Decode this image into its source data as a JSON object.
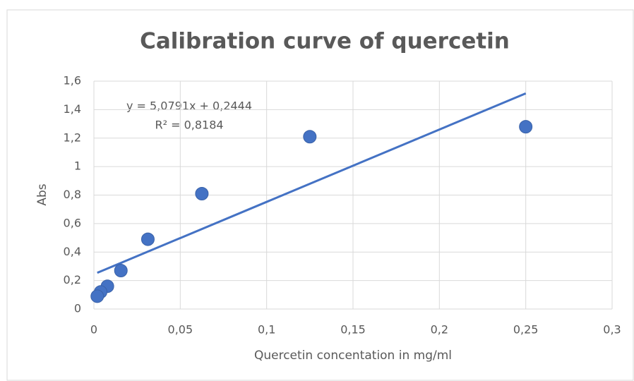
{
  "chart_data": {
    "type": "scatter",
    "title": "Calibration curve of quercetin",
    "x_label": "Quercetin concentation in mg/ml",
    "y_label": "Abs",
    "series": [
      {
        "name": "Abs",
        "color": "#4472c4",
        "x": [
          0.25,
          0.125,
          0.0625,
          0.03125,
          0.015625,
          0.0078125,
          0.00390625,
          0.001953125
        ],
        "values": [
          1.28,
          1.21,
          0.81,
          0.49,
          0.27,
          0.16,
          0.12,
          0.09
        ]
      }
    ],
    "trendline": {
      "slope": 5.0791,
      "intercept": 0.2444,
      "color": "#4472c4",
      "equation_label": "y = 5,0791x + 0,2444",
      "r2_label": "R² = 0,8184"
    },
    "xlim": [
      0,
      0.3
    ],
    "xticks": [
      0,
      {
        "value": 0.05,
        "label": "0,05"
      },
      {
        "value": 0.1,
        "label": "0,1"
      },
      {
        "value": 0.15,
        "label": "0,15"
      },
      {
        "value": 0.2,
        "label": "0,2"
      },
      {
        "value": 0.25,
        "label": "0,25"
      },
      {
        "value": 0.3,
        "label": "0,3"
      }
    ],
    "ylim": [
      0,
      1.6
    ],
    "yticks": [
      0,
      {
        "value": 0.2,
        "label": "0,2"
      },
      {
        "value": 0.4,
        "label": "0,4"
      },
      {
        "value": 0.6,
        "label": "0,6"
      },
      {
        "value": 0.8,
        "label": "0,8"
      },
      1,
      {
        "value": 1.2,
        "label": "1,2"
      },
      {
        "value": 1.4,
        "label": "1,4"
      },
      {
        "value": 1.6,
        "label": "1,6"
      }
    ],
    "grid": true
  }
}
